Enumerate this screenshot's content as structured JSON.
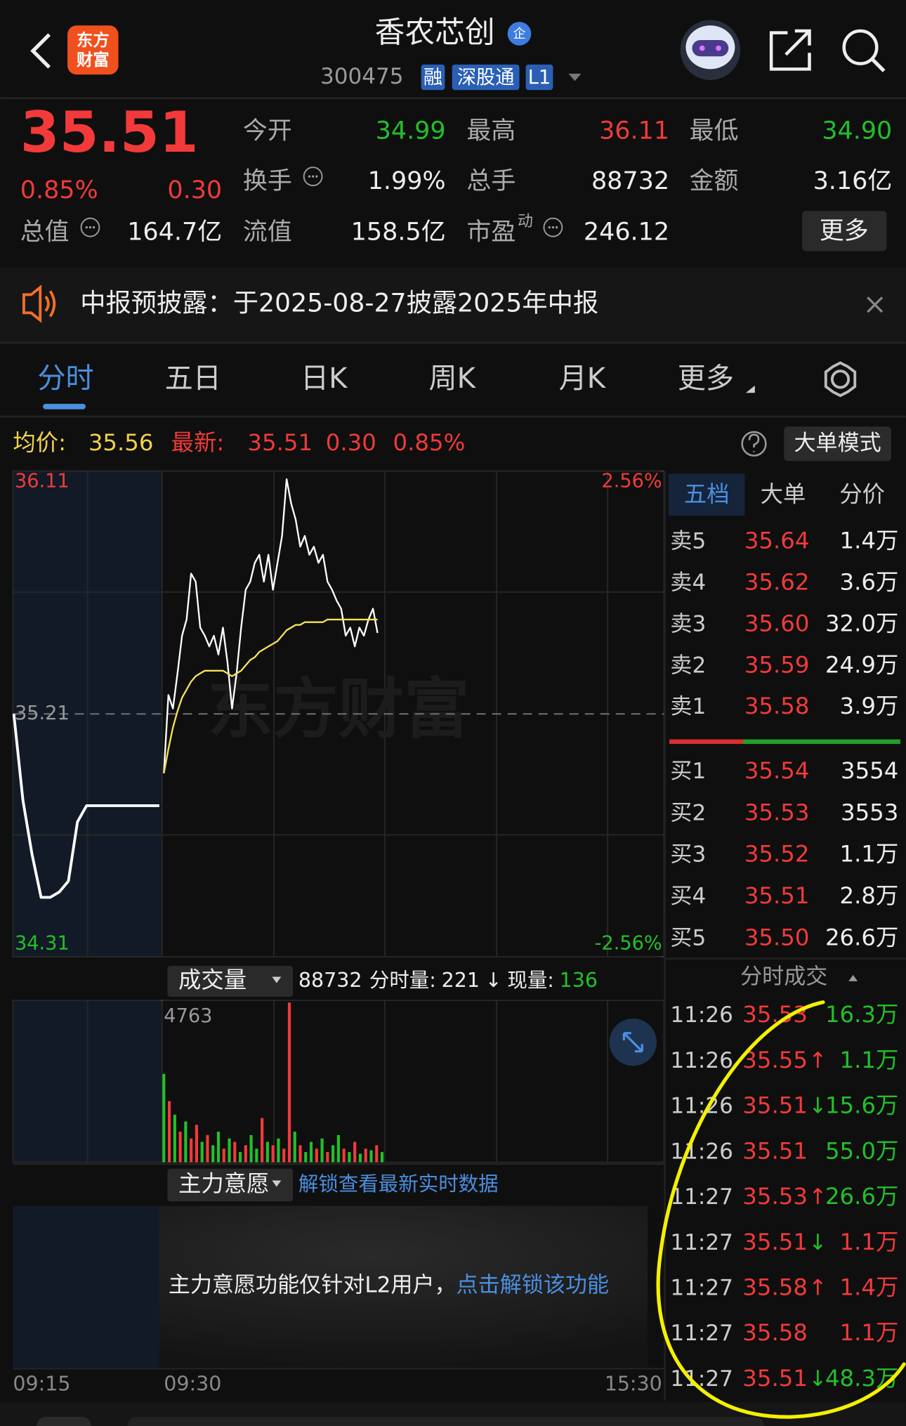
{
  "header": {
    "logo": [
      "东方",
      "财富"
    ],
    "name": "香农芯创",
    "badge": "企",
    "code": "300475",
    "tags": [
      "融",
      "深股通",
      "L1"
    ]
  },
  "quote": {
    "price": "35.51",
    "change_pct": "0.85%",
    "change": "0.30",
    "fields": [
      {
        "label": "今开",
        "value": "34.99",
        "color": "#22c02a"
      },
      {
        "label": "最高",
        "value": "36.11",
        "color": "#f23a3a"
      },
      {
        "label": "最低",
        "value": "34.90",
        "color": "#22c02a"
      },
      {
        "label": "换手",
        "value": "1.99%",
        "color": "#eeeeee"
      },
      {
        "label": "总手",
        "value": "88732",
        "color": "#eeeeee"
      },
      {
        "label": "金额",
        "value": "3.16亿",
        "color": "#eeeeee"
      },
      {
        "label": "总值",
        "value": "164.7亿",
        "color": "#eeeeee"
      },
      {
        "label": "流值",
        "value": "158.5亿",
        "color": "#eeeeee"
      },
      {
        "label": "市盈",
        "sup": "动",
        "value": "246.12",
        "color": "#eeeeee"
      }
    ],
    "more": "更多"
  },
  "notice": {
    "text": "中报预披露：于2025-08-27披露2025年中报"
  },
  "tabs": [
    "分时",
    "五日",
    "日K",
    "周K",
    "月K",
    "更多"
  ],
  "info_bar": {
    "avg_label": "均价:",
    "avg": "35.56",
    "latest_label": "最新:",
    "latest": "35.51",
    "change": "0.30",
    "change_pct": "0.85%",
    "mode": "大单模式"
  },
  "chart_data": [
    {
      "type": "line",
      "watermark": "东方财富",
      "xticks": [
        "09:15",
        "09:30",
        "15:30"
      ],
      "ylim": [
        34.31,
        36.11
      ],
      "yticks": [
        34.31,
        35.21,
        36.11
      ],
      "y2lim": [
        -2.56,
        2.56
      ],
      "y2ticks": [
        {
          "value": 2.56,
          "label": "2.56%"
        },
        {
          "value": -2.56,
          "label": "-2.56%"
        }
      ],
      "series": [
        {
          "color": "#ffffff",
          "values": [
            35.21,
            34.89,
            34.69,
            34.53,
            34.53,
            34.55,
            34.59,
            34.81,
            34.87,
            34.87,
            34.87,
            34.87,
            34.87,
            34.87,
            34.87,
            34.87,
            34.87
          ]
        },
        {
          "color": "#ffffff",
          "values": [
            34.99,
            35.28,
            35.23,
            35.36,
            35.5,
            35.56,
            35.73,
            35.7,
            35.53,
            35.5,
            35.46,
            35.5,
            35.43,
            35.53,
            35.4,
            35.23,
            35.36,
            35.53,
            35.67,
            35.7,
            35.77,
            35.8,
            35.7,
            35.8,
            35.67,
            35.77,
            35.87,
            36.08,
            35.99,
            35.93,
            35.83,
            35.87,
            35.8,
            35.83,
            35.77,
            35.8,
            35.7,
            35.67,
            35.63,
            35.6,
            35.5,
            35.53,
            35.46,
            35.53,
            35.5,
            35.56,
            35.6,
            35.51
          ]
        },
        {
          "color": "#f5e15a",
          "values": [
            34.99,
            35.08,
            35.16,
            35.22,
            35.27,
            35.3,
            35.33,
            35.35,
            35.36,
            35.37,
            35.37,
            35.37,
            35.37,
            35.37,
            35.36,
            35.35,
            35.36,
            35.37,
            35.39,
            35.41,
            35.42,
            35.44,
            35.45,
            35.46,
            35.47,
            35.48,
            35.5,
            35.52,
            35.53,
            35.54,
            35.54,
            35.55,
            35.55,
            35.55,
            35.55,
            35.55,
            35.56,
            35.56,
            35.56,
            35.56,
            35.56,
            35.56,
            35.56,
            35.56,
            35.56,
            35.56,
            35.56,
            35.56
          ]
        }
      ]
    },
    {
      "type": "bar",
      "selector": "成交量",
      "total": "88732",
      "minute_label": "分时量:",
      "minute_volume": "221",
      "arrow": "↓",
      "current_label": "现量:",
      "current_volume": "136",
      "ylim": [
        0,
        4763
      ],
      "yticks": [
        4763
      ],
      "values": [
        2600,
        1800,
        1400,
        900,
        1200,
        700,
        1100,
        600,
        800,
        500,
        900,
        400,
        700,
        600,
        300,
        500,
        800,
        400,
        1300,
        600,
        500,
        700,
        400,
        4700,
        900,
        500,
        300,
        600,
        400,
        700,
        300,
        500,
        800,
        400,
        300,
        600,
        250,
        400,
        350,
        500,
        300
      ],
      "colors": [
        "#22c02a",
        "#f23a3a",
        "#22c02a",
        "#f23a3a",
        "#22c02a",
        "#f23a3a",
        "#f23a3a",
        "#22c02a",
        "#f23a3a",
        "#22c02a",
        "#22c02a",
        "#f23a3a",
        "#22c02a",
        "#f23a3a",
        "#22c02a",
        "#f23a3a",
        "#22c02a",
        "#22c02a",
        "#f23a3a",
        "#22c02a",
        "#f23a3a",
        "#22c02a",
        "#f23a3a",
        "#f23a3a",
        "#22c02a",
        "#f23a3a",
        "#22c02a",
        "#22c02a",
        "#f23a3a",
        "#22c02a",
        "#f23a3a",
        "#22c02a",
        "#22c02a",
        "#f23a3a",
        "#22c02a",
        "#f23a3a",
        "#22c02a",
        "#f23a3a",
        "#22c02a",
        "#f23a3a",
        "#22c02a"
      ]
    }
  ],
  "main_panel": {
    "selector": "主力意愿",
    "link": "解锁查看最新实时数据",
    "message": "主力意愿功能仅针对L2用户，",
    "message_link": "点击解锁该功能"
  },
  "order_book": {
    "tabs": [
      "五档",
      "大单",
      "分价"
    ],
    "sell": [
      {
        "label": "卖5",
        "price": "35.64",
        "volume": "1.4万"
      },
      {
        "label": "卖4",
        "price": "35.62",
        "volume": "3.6万"
      },
      {
        "label": "卖3",
        "price": "35.60",
        "volume": "32.0万"
      },
      {
        "label": "卖2",
        "price": "35.59",
        "volume": "24.9万"
      },
      {
        "label": "卖1",
        "price": "35.58",
        "volume": "3.9万"
      }
    ],
    "buy": [
      {
        "label": "买1",
        "price": "35.54",
        "volume": "3554"
      },
      {
        "label": "买2",
        "price": "35.53",
        "volume": "3553"
      },
      {
        "label": "买3",
        "price": "35.52",
        "volume": "1.1万"
      },
      {
        "label": "买4",
        "price": "35.51",
        "volume": "2.8万"
      },
      {
        "label": "买5",
        "price": "35.50",
        "volume": "26.6万"
      }
    ]
  },
  "trades": {
    "title": "分时成交",
    "rows": [
      {
        "time": "11:26",
        "price": "35.53",
        "volume": "16.3万",
        "color": "#22c02a"
      },
      {
        "time": "11:26",
        "price": "35.55",
        "arrow": "↑",
        "arrow_color": "#f23a3a",
        "volume": "1.1万",
        "color": "#22c02a"
      },
      {
        "time": "11:26",
        "price": "35.51",
        "arrow": "↓",
        "arrow_color": "#22c02a",
        "volume": "15.6万",
        "color": "#22c02a"
      },
      {
        "time": "11:26",
        "price": "35.51",
        "volume": "55.0万",
        "color": "#22c02a"
      },
      {
        "time": "11:27",
        "price": "35.53",
        "arrow": "↑",
        "arrow_color": "#f23a3a",
        "volume": "26.6万",
        "color": "#22c02a"
      },
      {
        "time": "11:27",
        "price": "35.51",
        "arrow": "↓",
        "arrow_color": "#22c02a",
        "volume": "1.1万",
        "color": "#f23a3a"
      },
      {
        "time": "11:27",
        "price": "35.58",
        "arrow": "↑",
        "arrow_color": "#f23a3a",
        "volume": "1.4万",
        "color": "#f23a3a"
      },
      {
        "time": "11:27",
        "price": "35.58",
        "volume": "1.1万",
        "color": "#f23a3a"
      },
      {
        "time": "11:27",
        "price": "35.51",
        "arrow": "↓",
        "arrow_color": "#22c02a",
        "volume": "48.3万",
        "color": "#22c02a"
      }
    ]
  }
}
